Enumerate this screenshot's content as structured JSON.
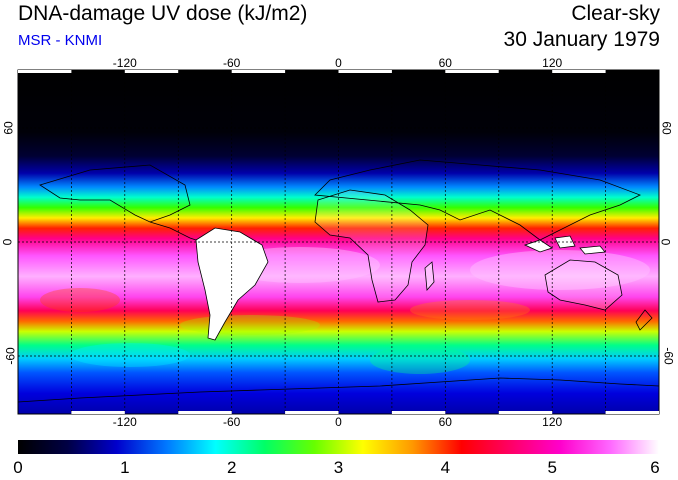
{
  "header": {
    "title": "DNA-damage UV dose (kJ/m2)",
    "source": "MSR - KNMI",
    "sky_condition": "Clear-sky",
    "date": "30 January 1979"
  },
  "map": {
    "lon_ticks": [
      "-120",
      "-60",
      "0",
      "60",
      "120"
    ],
    "lat_ticks": [
      "60",
      "0",
      "-60"
    ]
  },
  "colorbar": {
    "labels": [
      "0",
      "1",
      "2",
      "3",
      "4",
      "5",
      "6"
    ],
    "min": 0,
    "max": 6,
    "stops": [
      "#000000",
      "#000044",
      "#0000cc",
      "#0077ff",
      "#00ffff",
      "#00ff66",
      "#66ff00",
      "#ffff00",
      "#ff9900",
      "#ff0000",
      "#ff0066",
      "#ff00cc",
      "#ff66ff",
      "#ffffff"
    ]
  }
}
